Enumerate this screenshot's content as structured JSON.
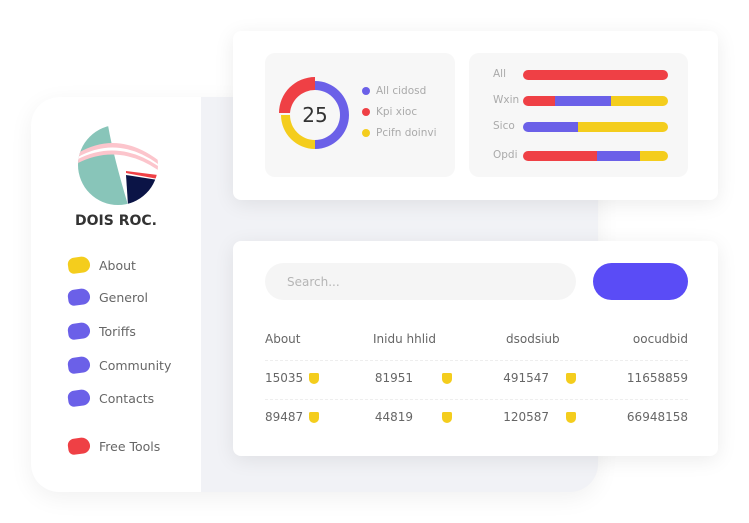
{
  "colors": {
    "red": "#ef4045",
    "purple": "#6b60e8",
    "yellow": "#f4cd1d",
    "accent_button": "#5a4cf6"
  },
  "sidebar": {
    "name": "DOIS ROC.",
    "items": [
      {
        "label": "About",
        "color": "#f4cd1d"
      },
      {
        "label": "Generol",
        "color": "#6b60e8"
      },
      {
        "label": "Toriffs",
        "color": "#6b60e8"
      },
      {
        "label": "Community",
        "color": "#6b60e8"
      },
      {
        "label": "Contacts",
        "color": "#6b60e8"
      },
      {
        "label": "Free Tools",
        "color": "#ef4045"
      }
    ]
  },
  "donut": {
    "value": "25",
    "segments": [
      {
        "color": "#6b60e8",
        "percent": 50
      },
      {
        "color": "#f4cd1d",
        "percent": 25
      },
      {
        "color": "#ef4045",
        "percent": 25
      }
    ],
    "legend": [
      {
        "label": "All cidosd",
        "color": "#6b60e8"
      },
      {
        "label": "Kpi xioc",
        "color": "#ef4045"
      },
      {
        "label": "Pcifn doinvi",
        "color": "#f4cd1d"
      }
    ]
  },
  "bars": [
    {
      "label": "All",
      "segments": [
        {
          "color": "#ef4045",
          "percent": 100
        }
      ]
    },
    {
      "label": "Wxin",
      "segments": [
        {
          "color": "#ef4045",
          "percent": 22
        },
        {
          "color": "#6b60e8",
          "percent": 39
        },
        {
          "color": "#f4cd1d",
          "percent": 39
        }
      ]
    },
    {
      "label": "Sico",
      "segments": [
        {
          "color": "#6b60e8",
          "percent": 38
        },
        {
          "color": "#f4cd1d",
          "percent": 62
        }
      ]
    },
    {
      "label": "Opdi",
      "segments": [
        {
          "color": "#ef4045",
          "percent": 51
        },
        {
          "color": "#6b60e8",
          "percent": 30
        },
        {
          "color": "#f4cd1d",
          "percent": 19
        }
      ]
    }
  ],
  "search": {
    "placeholder": "Search..."
  },
  "table": {
    "headers": [
      "About",
      "Inidu hhlid",
      "dsodsiub",
      "oocudbid"
    ],
    "rows": [
      [
        "15035",
        "81951",
        "491547",
        "11658859"
      ],
      [
        "89487",
        "44819",
        "120587",
        "66948158"
      ]
    ]
  }
}
